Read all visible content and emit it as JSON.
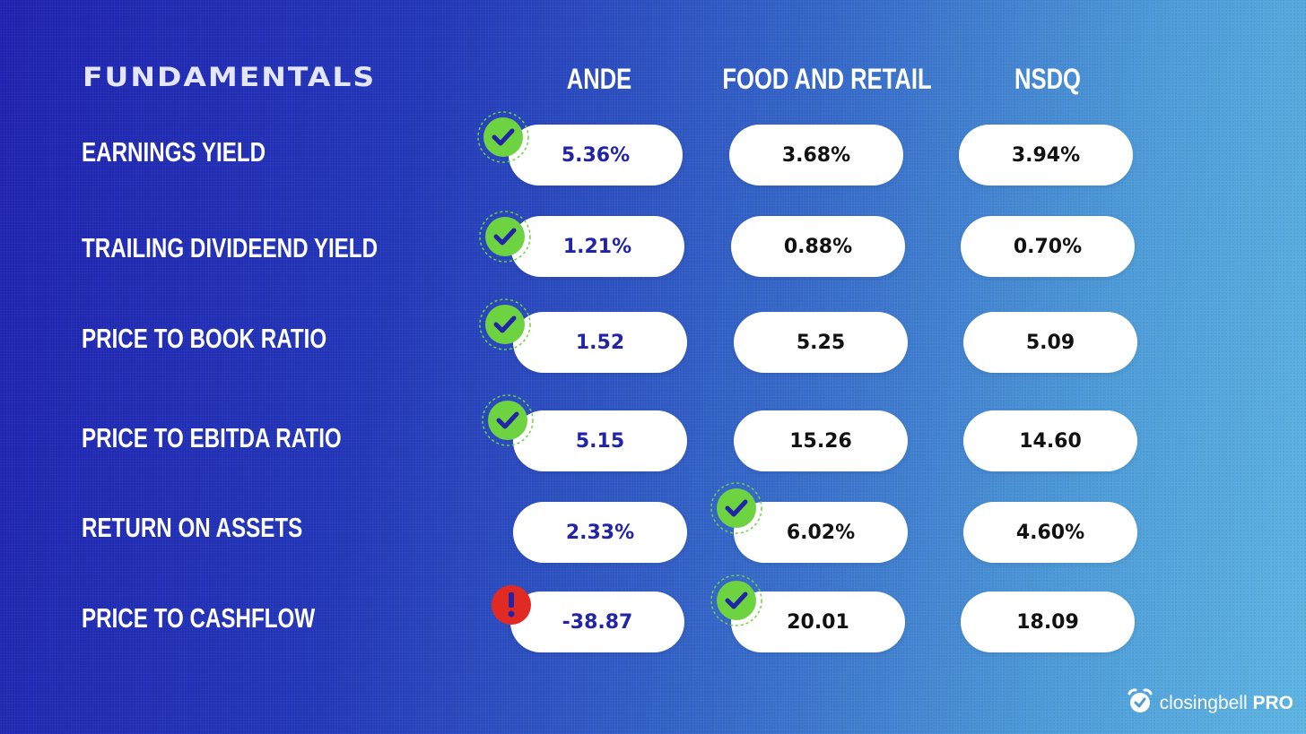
{
  "heading": "FUNDAMENTALS",
  "columns": [
    "ANDE",
    "FOOD AND RETAIL",
    "NSDQ"
  ],
  "rows": [
    {
      "label": "EARNINGS YIELD",
      "values": [
        "5.36%",
        "3.68%",
        "3.94%"
      ],
      "badges": [
        "check",
        null,
        null
      ]
    },
    {
      "label": "TRAILING DIVIDEEND YIELD",
      "values": [
        "1.21%",
        "0.88%",
        "0.70%"
      ],
      "badges": [
        "check",
        null,
        null
      ]
    },
    {
      "label": "PRICE TO BOOK RATIO",
      "values": [
        "1.52",
        "5.25",
        "5.09"
      ],
      "badges": [
        "check",
        null,
        null
      ]
    },
    {
      "label": "PRICE TO EBITDA RATIO",
      "values": [
        "5.15",
        "15.26",
        "14.60"
      ],
      "badges": [
        "check",
        null,
        null
      ]
    },
    {
      "label": "RETURN ON ASSETS",
      "values": [
        "2.33%",
        "6.02%",
        "4.60%"
      ],
      "badges": [
        null,
        "check",
        null
      ]
    },
    {
      "label": "PRICE TO CASHFLOW",
      "values": [
        "-38.87",
        "20.01",
        "18.09"
      ],
      "badges": [
        "alert",
        "check",
        null
      ]
    }
  ],
  "brand": {
    "name": "closingbell",
    "suffix": "PRO",
    "icon": "alarm-clock-icon"
  },
  "colors": {
    "check_badge": "#6dd340",
    "alert_badge": "#e02a22",
    "ande_value": "#2124a8",
    "peer_value": "#111111",
    "pill_bg": "#ffffff"
  }
}
